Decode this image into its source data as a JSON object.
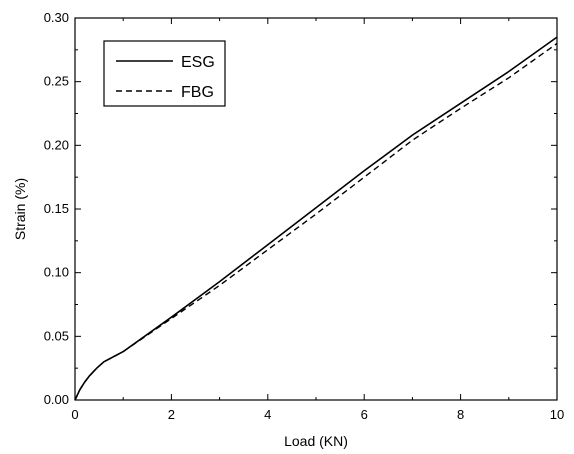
{
  "chart_data": {
    "type": "line",
    "title": "",
    "xlabel": "Load (KN)",
    "ylabel": "Strain (%)",
    "xlim": [
      0,
      10
    ],
    "ylim": [
      0,
      0.3
    ],
    "x_ticks": [
      "0",
      "2",
      "4",
      "6",
      "8",
      "10"
    ],
    "y_ticks": [
      "0.00",
      "0.05",
      "0.10",
      "0.15",
      "0.20",
      "0.25",
      "0.30"
    ],
    "grid": false,
    "legend_position": "top-left",
    "series": [
      {
        "name": "ESG",
        "line_style": "solid",
        "color": "#000000",
        "x": [
          0,
          0.1,
          0.2,
          0.3,
          0.45,
          0.6,
          1.0,
          2.0,
          3.0,
          4.0,
          5.0,
          6.0,
          7.0,
          8.0,
          9.0,
          10.0
        ],
        "y": [
          0,
          0.008,
          0.014,
          0.019,
          0.025,
          0.03,
          0.038,
          0.065,
          0.093,
          0.122,
          0.151,
          0.18,
          0.208,
          0.233,
          0.258,
          0.285
        ]
      },
      {
        "name": "FBG",
        "line_style": "dashed",
        "color": "#000000",
        "x": [
          0,
          0.1,
          0.2,
          0.3,
          0.45,
          0.6,
          1.0,
          2.0,
          3.0,
          4.0,
          5.0,
          6.0,
          7.0,
          8.0,
          9.0,
          10.0
        ],
        "y": [
          0,
          0.008,
          0.014,
          0.019,
          0.025,
          0.03,
          0.038,
          0.064,
          0.09,
          0.118,
          0.146,
          0.175,
          0.204,
          0.229,
          0.253,
          0.28
        ]
      }
    ]
  }
}
